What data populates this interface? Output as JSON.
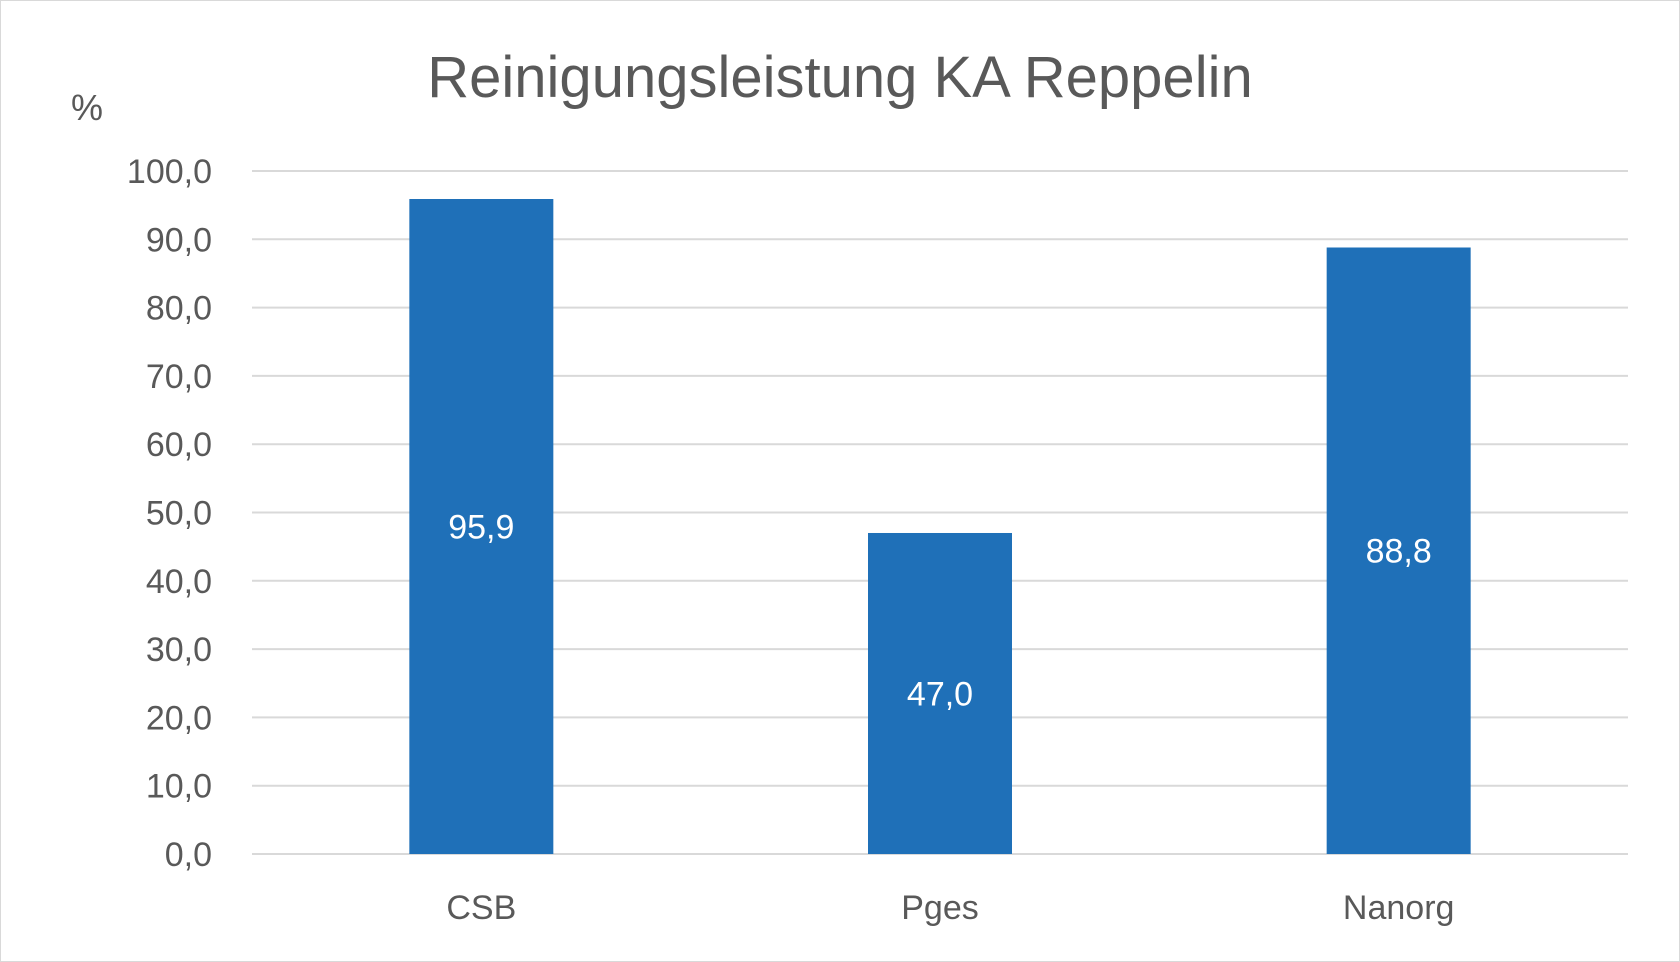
{
  "chart_data": {
    "type": "bar",
    "title": "Reinigungsleistung KA Reppelin",
    "unit_label": "%",
    "xlabel": "",
    "ylabel": "",
    "categories": [
      "CSB",
      "Pges",
      "Nanorg"
    ],
    "values": [
      95.9,
      47.0,
      88.8
    ],
    "data_labels": [
      "95,9",
      "47,0",
      "88,8"
    ],
    "ylim": [
      0,
      100
    ],
    "y_ticks": [
      0,
      10,
      20,
      30,
      40,
      50,
      60,
      70,
      80,
      90,
      100
    ],
    "y_tick_labels": [
      "0,0",
      "10,0",
      "20,0",
      "30,0",
      "40,0",
      "50,0",
      "60,0",
      "70,0",
      "80,0",
      "90,0",
      "100,0"
    ],
    "grid": true,
    "legend": "none",
    "colors": {
      "bar": "#1f70b8",
      "grid": "#d9d9d9",
      "text": "#595959",
      "data_label": "#ffffff",
      "frame": "#d9d9d9"
    }
  }
}
